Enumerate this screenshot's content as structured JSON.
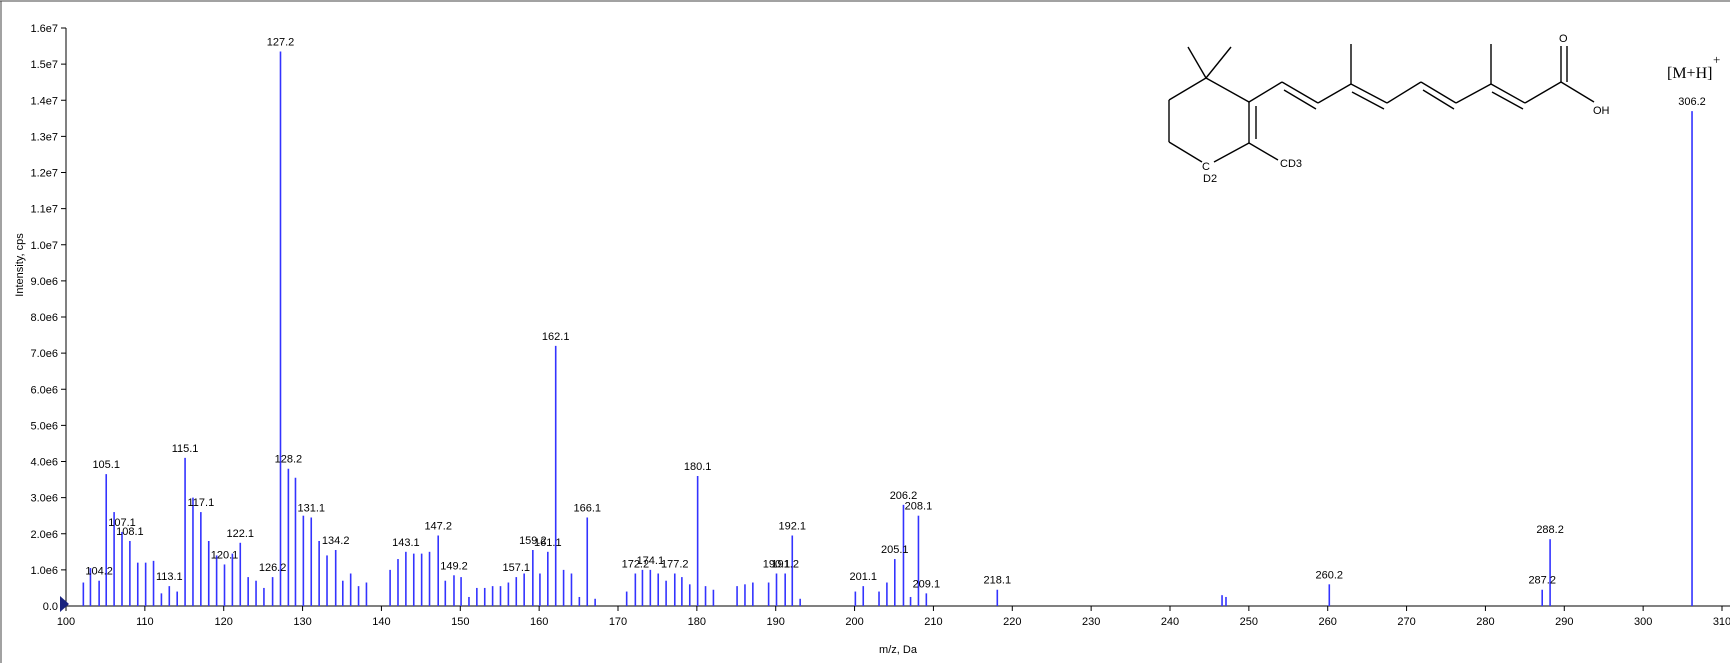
{
  "chart_data": {
    "type": "bar",
    "xlabel": "m/z, Da",
    "ylabel": "Intensity, cps",
    "xlim": [
      100,
      310
    ],
    "ylim": [
      0,
      16000000
    ],
    "grid": false,
    "x_ticks": [
      100,
      110,
      120,
      130,
      140,
      150,
      160,
      170,
      180,
      190,
      200,
      210,
      220,
      230,
      240,
      250,
      260,
      270,
      280,
      290,
      300,
      310
    ],
    "x_tick_labels": [
      "100",
      "110",
      "120",
      "130",
      "140",
      "150",
      "160",
      "170",
      "180",
      "190",
      "200",
      "210",
      "220",
      "230",
      "240",
      "250",
      "260",
      "270",
      "280",
      "290",
      "300",
      "310"
    ],
    "y_ticks": [
      0,
      1000000,
      2000000,
      3000000,
      4000000,
      5000000,
      6000000,
      7000000,
      8000000,
      9000000,
      10000000,
      11000000,
      12000000,
      13000000,
      14000000,
      15000000,
      16000000
    ],
    "y_tick_labels": [
      "0.0",
      "1.0e6",
      "2.0e6",
      "3.0e6",
      "4.0e6",
      "5.0e6",
      "6.0e6",
      "7.0e6",
      "8.0e6",
      "9.0e6",
      "1.0e7",
      "1.1e7",
      "1.2e7",
      "1.3e7",
      "1.4e7",
      "1.5e7",
      "1.6e7"
    ],
    "peaks": [
      {
        "mz": 102.2,
        "intensity": 650000
      },
      {
        "mz": 103.1,
        "intensity": 1050000
      },
      {
        "mz": 104.2,
        "intensity": 700000
      },
      {
        "mz": 105.1,
        "intensity": 3650000
      },
      {
        "mz": 106.1,
        "intensity": 2600000
      },
      {
        "mz": 107.1,
        "intensity": 2050000
      },
      {
        "mz": 108.1,
        "intensity": 1800000
      },
      {
        "mz": 109.1,
        "intensity": 1200000
      },
      {
        "mz": 110.1,
        "intensity": 1200000
      },
      {
        "mz": 111.1,
        "intensity": 1250000
      },
      {
        "mz": 112.1,
        "intensity": 350000
      },
      {
        "mz": 113.1,
        "intensity": 550000
      },
      {
        "mz": 114.1,
        "intensity": 400000
      },
      {
        "mz": 115.1,
        "intensity": 4100000
      },
      {
        "mz": 116.1,
        "intensity": 3000000
      },
      {
        "mz": 117.1,
        "intensity": 2600000
      },
      {
        "mz": 118.1,
        "intensity": 1800000
      },
      {
        "mz": 119.1,
        "intensity": 1400000
      },
      {
        "mz": 120.1,
        "intensity": 1150000
      },
      {
        "mz": 121.1,
        "intensity": 1450000
      },
      {
        "mz": 122.1,
        "intensity": 1750000
      },
      {
        "mz": 123.1,
        "intensity": 800000
      },
      {
        "mz": 124.1,
        "intensity": 700000
      },
      {
        "mz": 125.1,
        "intensity": 500000
      },
      {
        "mz": 126.2,
        "intensity": 800000
      },
      {
        "mz": 127.2,
        "intensity": 15350000
      },
      {
        "mz": 128.2,
        "intensity": 3800000
      },
      {
        "mz": 129.1,
        "intensity": 3550000
      },
      {
        "mz": 130.1,
        "intensity": 2500000
      },
      {
        "mz": 131.1,
        "intensity": 2450000
      },
      {
        "mz": 132.1,
        "intensity": 1800000
      },
      {
        "mz": 133.1,
        "intensity": 1400000
      },
      {
        "mz": 134.2,
        "intensity": 1550000
      },
      {
        "mz": 135.1,
        "intensity": 700000
      },
      {
        "mz": 136.1,
        "intensity": 900000
      },
      {
        "mz": 137.1,
        "intensity": 550000
      },
      {
        "mz": 138.1,
        "intensity": 650000
      },
      {
        "mz": 141.1,
        "intensity": 1000000
      },
      {
        "mz": 142.1,
        "intensity": 1300000
      },
      {
        "mz": 143.1,
        "intensity": 1500000
      },
      {
        "mz": 144.1,
        "intensity": 1450000
      },
      {
        "mz": 145.1,
        "intensity": 1450000
      },
      {
        "mz": 146.1,
        "intensity": 1500000
      },
      {
        "mz": 147.2,
        "intensity": 1950000
      },
      {
        "mz": 148.1,
        "intensity": 700000
      },
      {
        "mz": 149.2,
        "intensity": 850000
      },
      {
        "mz": 150.1,
        "intensity": 800000
      },
      {
        "mz": 151.1,
        "intensity": 250000
      },
      {
        "mz": 152.1,
        "intensity": 500000
      },
      {
        "mz": 153.1,
        "intensity": 500000
      },
      {
        "mz": 154.1,
        "intensity": 550000
      },
      {
        "mz": 155.1,
        "intensity": 550000
      },
      {
        "mz": 156.1,
        "intensity": 650000
      },
      {
        "mz": 157.1,
        "intensity": 800000
      },
      {
        "mz": 158.1,
        "intensity": 900000
      },
      {
        "mz": 159.2,
        "intensity": 1550000
      },
      {
        "mz": 160.1,
        "intensity": 900000
      },
      {
        "mz": 161.1,
        "intensity": 1500000
      },
      {
        "mz": 162.1,
        "intensity": 7200000
      },
      {
        "mz": 163.1,
        "intensity": 1000000
      },
      {
        "mz": 164.1,
        "intensity": 900000
      },
      {
        "mz": 165.1,
        "intensity": 250000
      },
      {
        "mz": 166.1,
        "intensity": 2450000
      },
      {
        "mz": 167.1,
        "intensity": 200000
      },
      {
        "mz": 171.1,
        "intensity": 400000
      },
      {
        "mz": 172.2,
        "intensity": 900000
      },
      {
        "mz": 173.1,
        "intensity": 1000000
      },
      {
        "mz": 174.1,
        "intensity": 1000000
      },
      {
        "mz": 175.1,
        "intensity": 900000
      },
      {
        "mz": 176.1,
        "intensity": 700000
      },
      {
        "mz": 177.2,
        "intensity": 900000
      },
      {
        "mz": 178.1,
        "intensity": 800000
      },
      {
        "mz": 179.1,
        "intensity": 600000
      },
      {
        "mz": 180.1,
        "intensity": 3600000
      },
      {
        "mz": 181.1,
        "intensity": 550000
      },
      {
        "mz": 182.1,
        "intensity": 450000
      },
      {
        "mz": 185.1,
        "intensity": 550000
      },
      {
        "mz": 186.1,
        "intensity": 600000
      },
      {
        "mz": 187.1,
        "intensity": 650000
      },
      {
        "mz": 189.1,
        "intensity": 650000
      },
      {
        "mz": 190.1,
        "intensity": 900000
      },
      {
        "mz": 191.2,
        "intensity": 900000
      },
      {
        "mz": 192.1,
        "intensity": 1950000
      },
      {
        "mz": 193.1,
        "intensity": 200000
      },
      {
        "mz": 200.1,
        "intensity": 400000
      },
      {
        "mz": 201.1,
        "intensity": 550000
      },
      {
        "mz": 203.1,
        "intensity": 400000
      },
      {
        "mz": 204.1,
        "intensity": 650000
      },
      {
        "mz": 205.1,
        "intensity": 1300000
      },
      {
        "mz": 206.2,
        "intensity": 2800000
      },
      {
        "mz": 207.1,
        "intensity": 250000
      },
      {
        "mz": 208.1,
        "intensity": 2500000
      },
      {
        "mz": 209.1,
        "intensity": 350000
      },
      {
        "mz": 218.1,
        "intensity": 450000
      },
      {
        "mz": 246.6,
        "intensity": 300000
      },
      {
        "mz": 247.1,
        "intensity": 250000
      },
      {
        "mz": 260.2,
        "intensity": 600000
      },
      {
        "mz": 287.2,
        "intensity": 450000
      },
      {
        "mz": 288.2,
        "intensity": 1850000
      },
      {
        "mz": 306.2,
        "intensity": 13700000
      }
    ],
    "peak_labels": [
      {
        "mz": 104.2,
        "text": "104.2",
        "intensity": 700000
      },
      {
        "mz": 105.1,
        "text": "105.1",
        "intensity": 3650000
      },
      {
        "mz": 107.1,
        "text": "107.1",
        "intensity": 2050000
      },
      {
        "mz": 108.1,
        "text": "108.1",
        "intensity": 1800000
      },
      {
        "mz": 113.1,
        "text": "113.1",
        "intensity": 550000
      },
      {
        "mz": 115.1,
        "text": "115.1",
        "intensity": 4100000
      },
      {
        "mz": 117.1,
        "text": "117.1",
        "intensity": 2600000
      },
      {
        "mz": 120.1,
        "text": "120.1",
        "intensity": 1150000
      },
      {
        "mz": 122.1,
        "text": "122.1",
        "intensity": 1750000
      },
      {
        "mz": 126.2,
        "text": "126.2",
        "intensity": 800000
      },
      {
        "mz": 127.2,
        "text": "127.2",
        "intensity": 15350000
      },
      {
        "mz": 128.2,
        "text": "128.2",
        "intensity": 3800000
      },
      {
        "mz": 131.1,
        "text": "131.1",
        "intensity": 2450000
      },
      {
        "mz": 134.2,
        "text": "134.2",
        "intensity": 1550000
      },
      {
        "mz": 143.1,
        "text": "143.1",
        "intensity": 1500000
      },
      {
        "mz": 147.2,
        "text": "147.2",
        "intensity": 1950000
      },
      {
        "mz": 149.2,
        "text": "149.2",
        "intensity": 850000
      },
      {
        "mz": 157.1,
        "text": "157.1",
        "intensity": 800000
      },
      {
        "mz": 159.2,
        "text": "159.2",
        "intensity": 1550000
      },
      {
        "mz": 161.1,
        "text": "161.1",
        "intensity": 1500000
      },
      {
        "mz": 162.1,
        "text": "162.1",
        "intensity": 7200000
      },
      {
        "mz": 166.1,
        "text": "166.1",
        "intensity": 2450000
      },
      {
        "mz": 172.2,
        "text": "172.2",
        "intensity": 900000
      },
      {
        "mz": 174.1,
        "text": "174.1",
        "intensity": 1000000
      },
      {
        "mz": 177.2,
        "text": "177.2",
        "intensity": 900000
      },
      {
        "mz": 180.1,
        "text": "180.1",
        "intensity": 3600000
      },
      {
        "mz": 190.1,
        "text": "190.1",
        "intensity": 900000
      },
      {
        "mz": 191.2,
        "text": "191.2",
        "intensity": 900000
      },
      {
        "mz": 192.1,
        "text": "192.1",
        "intensity": 1950000
      },
      {
        "mz": 201.1,
        "text": "201.1",
        "intensity": 550000
      },
      {
        "mz": 205.1,
        "text": "205.1",
        "intensity": 1300000
      },
      {
        "mz": 206.2,
        "text": "206.2",
        "intensity": 2800000
      },
      {
        "mz": 208.1,
        "text": "208.1",
        "intensity": 2500000
      },
      {
        "mz": 209.1,
        "text": "209.1",
        "intensity": 350000
      },
      {
        "mz": 218.1,
        "text": "218.1",
        "intensity": 450000
      },
      {
        "mz": 260.2,
        "text": "260.2",
        "intensity": 600000
      },
      {
        "mz": 287.2,
        "text": "287.2",
        "intensity": 450000
      },
      {
        "mz": 288.2,
        "text": "288.2",
        "intensity": 1850000
      },
      {
        "mz": 306.2,
        "text": "306.2",
        "intensity": 13700000
      }
    ],
    "annotations": {
      "molecular_ion": "[M+H]",
      "molecular_ion_charge": "+",
      "structure": {
        "oxygen_label": "O",
        "hydroxyl_label": "OH",
        "cd3_label": "CD3",
        "cd2_label": "C",
        "d2_label": "D2"
      }
    },
    "colors": {
      "peaks": "#3333ff",
      "axes": "#000000",
      "marker": "#1a237e"
    }
  }
}
